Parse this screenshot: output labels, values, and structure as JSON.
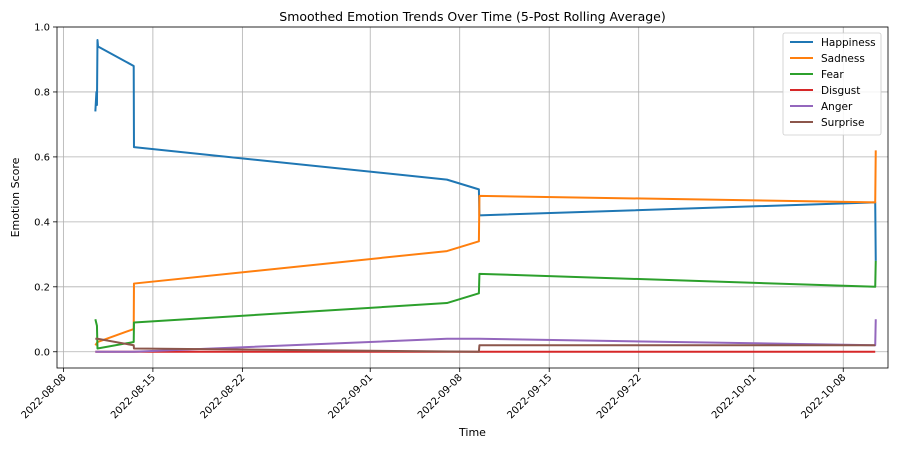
{
  "chart_data": {
    "type": "line",
    "title": "Smoothed Emotion Trends Over Time (5-Post Rolling Average)",
    "xlabel": "Time",
    "ylabel": "Emotion Score",
    "x_axis_type": "date",
    "xlim": [
      "2022-08-07T12:00",
      "2022-10-11T12:00"
    ],
    "ylim": [
      -0.05,
      1.0
    ],
    "x_ticks": [
      "2022-08-08",
      "2022-08-15",
      "2022-08-22",
      "2022-09-01",
      "2022-09-08",
      "2022-09-15",
      "2022-09-22",
      "2022-10-01",
      "2022-10-08"
    ],
    "y_ticks": [
      0.0,
      0.2,
      0.4,
      0.6,
      0.8,
      1.0
    ],
    "grid": true,
    "legend_position": "top-right",
    "series": [
      {
        "name": "Happiness",
        "color": "#1f77b4",
        "points": [
          [
            "2022-08-10T12:00",
            0.74
          ],
          [
            "2022-08-10T14:00",
            0.8
          ],
          [
            "2022-08-10T15:00",
            0.76
          ],
          [
            "2022-08-10T16:00",
            0.96
          ],
          [
            "2022-08-10T17:00",
            0.94
          ],
          [
            "2022-08-13T12:00",
            0.88
          ],
          [
            "2022-08-13T12:30",
            0.63
          ],
          [
            "2022-09-07T00:00",
            0.53
          ],
          [
            "2022-09-09T12:00",
            0.5
          ],
          [
            "2022-09-09T13:00",
            0.42
          ],
          [
            "2022-10-10T12:00",
            0.46
          ],
          [
            "2022-10-10T13:00",
            0.28
          ]
        ]
      },
      {
        "name": "Sadness",
        "color": "#ff7f0e",
        "points": [
          [
            "2022-08-10T12:00",
            0.02
          ],
          [
            "2022-08-10T16:00",
            0.03
          ],
          [
            "2022-08-13T12:00",
            0.07
          ],
          [
            "2022-08-13T12:30",
            0.21
          ],
          [
            "2022-09-07T00:00",
            0.31
          ],
          [
            "2022-09-09T12:00",
            0.34
          ],
          [
            "2022-09-09T13:00",
            0.48
          ],
          [
            "2022-10-10T12:00",
            0.46
          ],
          [
            "2022-10-10T13:00",
            0.62
          ]
        ]
      },
      {
        "name": "Fear",
        "color": "#2ca02c",
        "points": [
          [
            "2022-08-10T12:00",
            0.1
          ],
          [
            "2022-08-10T15:00",
            0.08
          ],
          [
            "2022-08-10T16:00",
            0.01
          ],
          [
            "2022-08-13T12:00",
            0.03
          ],
          [
            "2022-08-13T12:30",
            0.09
          ],
          [
            "2022-09-07T00:00",
            0.15
          ],
          [
            "2022-09-09T12:00",
            0.18
          ],
          [
            "2022-09-09T13:00",
            0.24
          ],
          [
            "2022-10-10T12:00",
            0.2
          ],
          [
            "2022-10-10T13:00",
            0.28
          ]
        ]
      },
      {
        "name": "Disgust",
        "color": "#d62728",
        "points": [
          [
            "2022-08-10T12:00",
            0.0
          ],
          [
            "2022-08-10T16:00",
            0.0
          ],
          [
            "2022-08-13T12:00",
            0.0
          ],
          [
            "2022-09-09T12:00",
            0.0
          ],
          [
            "2022-10-10T12:00",
            0.0
          ]
        ]
      },
      {
        "name": "Anger",
        "color": "#9467bd",
        "points": [
          [
            "2022-08-10T12:00",
            0.0
          ],
          [
            "2022-08-13T12:00",
            0.0
          ],
          [
            "2022-09-07T00:00",
            0.04
          ],
          [
            "2022-09-09T12:00",
            0.04
          ],
          [
            "2022-10-10T12:00",
            0.02
          ],
          [
            "2022-10-10T13:00",
            0.1
          ]
        ]
      },
      {
        "name": "Surprise",
        "color": "#8c564b",
        "points": [
          [
            "2022-08-10T12:00",
            0.04
          ],
          [
            "2022-08-10T16:00",
            0.04
          ],
          [
            "2022-08-13T12:00",
            0.02
          ],
          [
            "2022-08-13T12:30",
            0.01
          ],
          [
            "2022-09-09T12:00",
            0.0
          ],
          [
            "2022-09-09T13:00",
            0.02
          ],
          [
            "2022-10-10T12:00",
            0.02
          ]
        ]
      }
    ]
  }
}
